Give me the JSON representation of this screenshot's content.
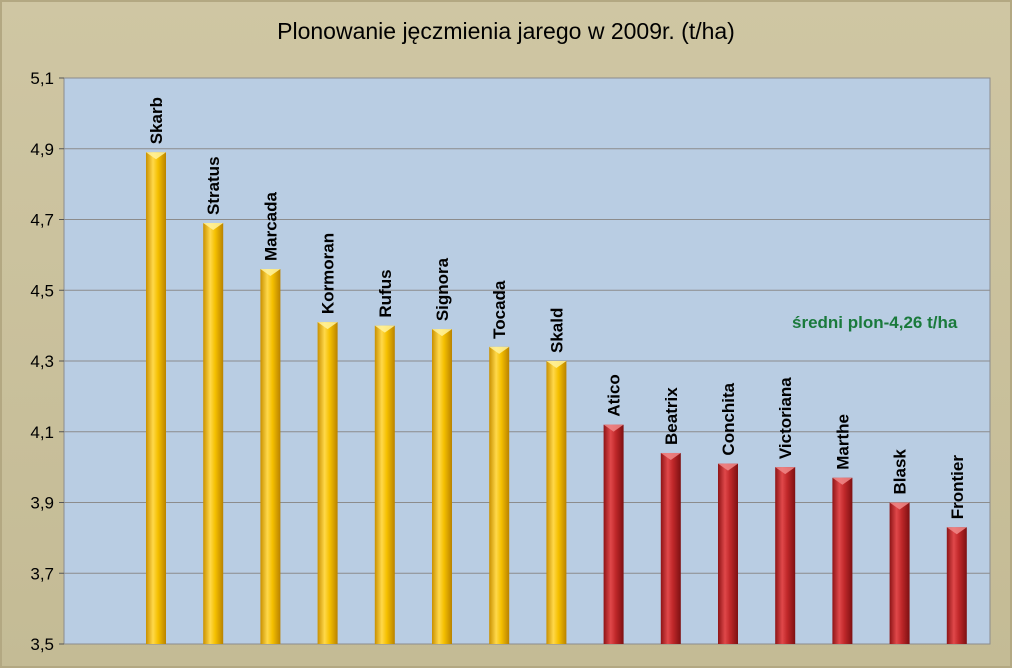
{
  "chart_data": {
    "type": "bar",
    "title": "Plonowanie jęczmienia jarego w 2009r.  (t/ha)",
    "xlabel": "",
    "ylabel": "",
    "ylim": [
      3.5,
      5.1
    ],
    "yticks": [
      "3,5",
      "3,7",
      "3,9",
      "4,1",
      "4,3",
      "4,5",
      "4,7",
      "4,9",
      "5,1"
    ],
    "grid": true,
    "categories": [
      "Skarb",
      "Stratus",
      "Marcada",
      "Kormoran",
      "Rufus",
      "Signora",
      "Tocada",
      "Skald",
      "Atico",
      "Beatrix",
      "Conchita",
      "Victoriana",
      "Marthe",
      "Blask",
      "Frontier"
    ],
    "values": [
      4.89,
      4.69,
      4.56,
      4.41,
      4.4,
      4.39,
      4.34,
      4.3,
      4.12,
      4.04,
      4.01,
      4.0,
      3.97,
      3.9,
      3.83
    ],
    "bar_groups": [
      "above",
      "above",
      "above",
      "above",
      "above",
      "above",
      "above",
      "above",
      "below",
      "below",
      "below",
      "below",
      "below",
      "below",
      "below"
    ],
    "colors": {
      "above": "#f5c000",
      "below": "#c0282a",
      "plot_bg": "#b9cde3",
      "grid": "#8c8c8c",
      "annotation": "#1a7a3c"
    },
    "annotation": "średni plon-4,26 t/ha"
  }
}
